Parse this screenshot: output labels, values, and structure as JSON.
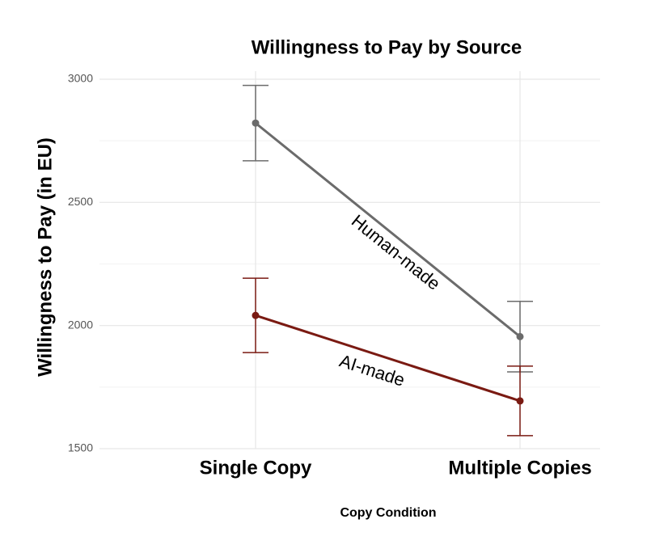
{
  "chart_data": {
    "type": "line",
    "title": "Willingness to Pay by Source",
    "x_label": "Copy Condition",
    "y_label": "Willingness to Pay (in EU)",
    "categories": [
      "Single Copy",
      "Multiple Copies"
    ],
    "series": [
      {
        "name": "Human-made",
        "color": "#6b6b6b",
        "values": [
          2822,
          1955
        ],
        "errors": [
          153,
          143
        ]
      },
      {
        "name": "AI-made",
        "color": "#7a1a12",
        "values": [
          2041,
          1694
        ],
        "errors": [
          151,
          141
        ]
      }
    ],
    "ylim": [
      1500,
      3000
    ],
    "yticks": [
      1500,
      2000,
      2500,
      3000
    ],
    "minor_yticks": [
      1750,
      2250,
      2750
    ],
    "grid": true
  }
}
